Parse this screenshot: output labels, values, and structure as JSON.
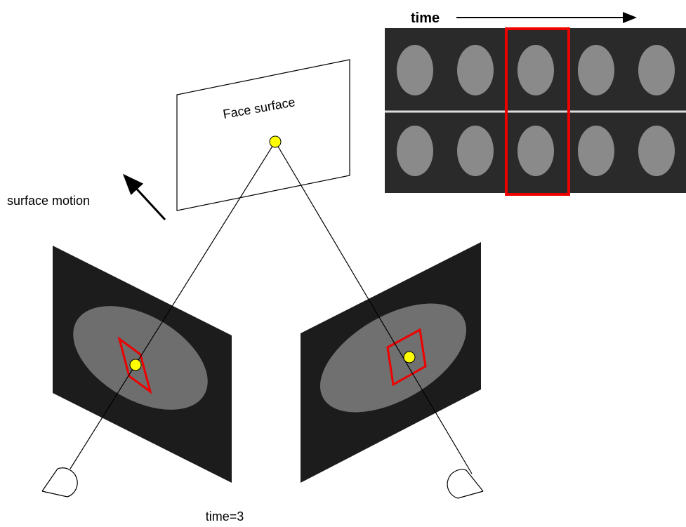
{
  "labels": {
    "time": "time",
    "face_surface": "Face surface",
    "surface_motion": "surface motion",
    "time_caption": "time=3"
  }
}
